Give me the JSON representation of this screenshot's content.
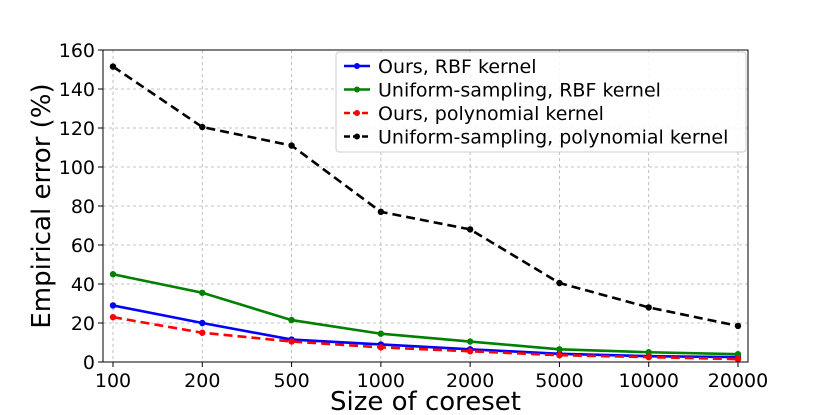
{
  "chart_data": {
    "type": "line",
    "title": "",
    "xlabel": "Size of coreset",
    "ylabel": "Empirical error (%)",
    "categories": [
      "100",
      "200",
      "500",
      "1000",
      "2000",
      "5000",
      "10000",
      "20000"
    ],
    "ylim": [
      0,
      160
    ],
    "yticks": [
      "0",
      "20",
      "40",
      "60",
      "80",
      "100",
      "120",
      "140",
      "160"
    ],
    "grid": true,
    "legend_position": "top-right",
    "series": [
      {
        "name": "Ours, RBF kernel",
        "color": "#0000ff",
        "dashed": false,
        "values": [
          29,
          20,
          11.5,
          9,
          6.5,
          4.2,
          3,
          2.5
        ]
      },
      {
        "name": "Uniform-sampling, RBF kernel",
        "color": "#008000",
        "dashed": false,
        "values": [
          45,
          35.5,
          21.5,
          14.5,
          10.5,
          6.5,
          5,
          4
        ]
      },
      {
        "name": "Ours, polynomial kernel",
        "color": "#ff0000",
        "dashed": true,
        "values": [
          23,
          15,
          10.5,
          7.5,
          5.5,
          3.5,
          2.5,
          1.5
        ]
      },
      {
        "name": "Uniform-sampling, polynomial kernel",
        "color": "#000000",
        "dashed": true,
        "values": [
          151.5,
          120.5,
          111,
          77,
          68,
          40.5,
          28,
          18.5
        ]
      }
    ]
  }
}
